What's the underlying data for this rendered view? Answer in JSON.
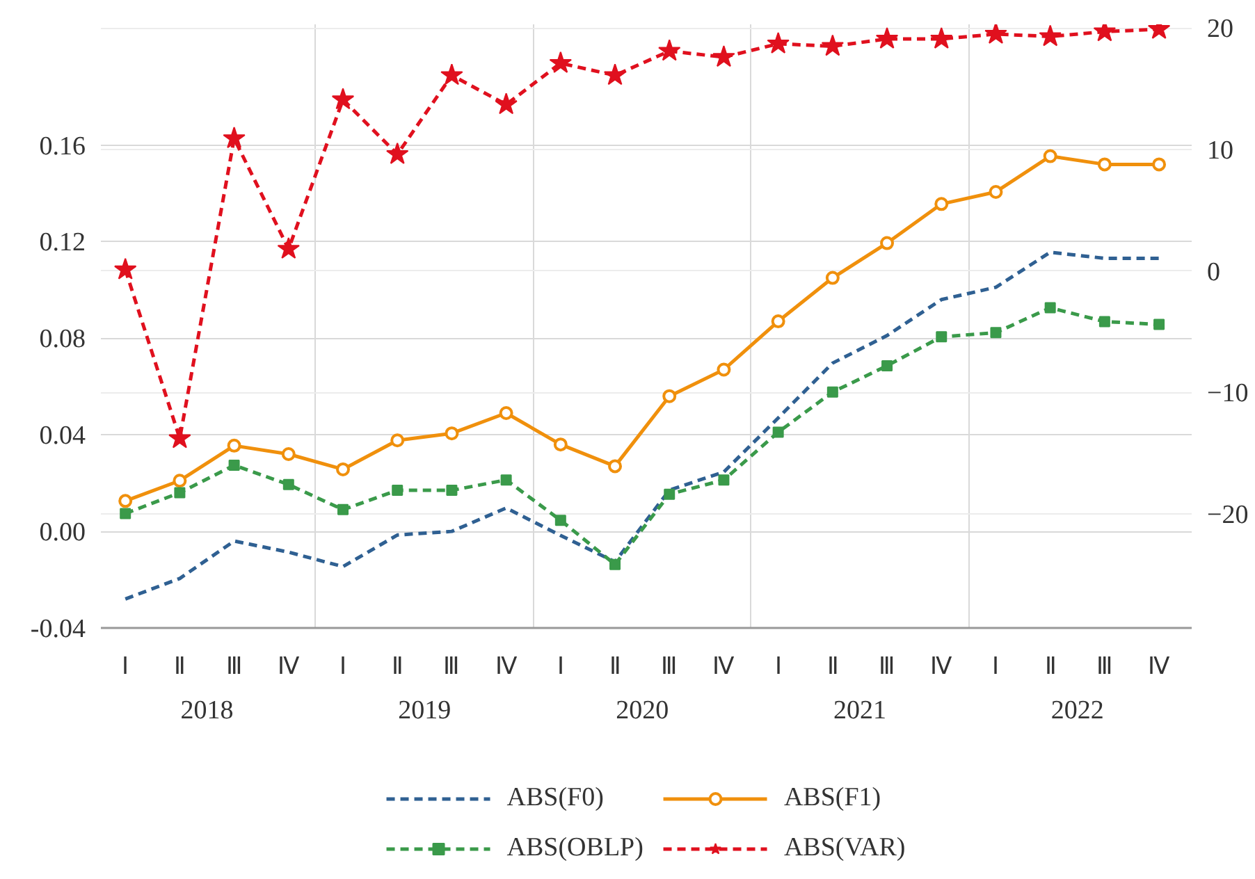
{
  "chart_data": {
    "type": "line",
    "categories": [
      "Ⅰ",
      "Ⅱ",
      "Ⅲ",
      "Ⅳ",
      "Ⅰ",
      "Ⅱ",
      "Ⅲ",
      "Ⅳ",
      "Ⅰ",
      "Ⅱ",
      "Ⅲ",
      "Ⅳ",
      "Ⅰ",
      "Ⅱ",
      "Ⅲ",
      "Ⅳ",
      "Ⅰ",
      "Ⅱ",
      "Ⅲ",
      "Ⅳ"
    ],
    "annotations": [
      "2018",
      "2019",
      "2020",
      "2021",
      "2022"
    ],
    "series": [
      {
        "name": "ABS(F0)",
        "color": "#2f6092",
        "marker": "none",
        "line_style": "dashed",
        "values": [
          -0.028,
          -0.0195,
          -0.004,
          -0.0086,
          -0.0146,
          -0.0015,
          0.0,
          0.0097,
          -0.0017,
          -0.0126,
          0.0171,
          0.0246,
          0.047,
          0.0697,
          0.0811,
          0.096,
          0.1011,
          0.1156,
          0.1131,
          0.1131
        ]
      },
      {
        "name": "ABS(F1)",
        "color": "#f0900c",
        "marker": "circle",
        "line_style": "solid",
        "values": [
          0.0126,
          0.021,
          0.0355,
          0.032,
          0.0257,
          0.0377,
          0.0406,
          0.049,
          0.036,
          0.027,
          0.056,
          0.067,
          0.087,
          0.105,
          0.1194,
          0.1356,
          0.1406,
          0.1554,
          0.152,
          0.152
        ]
      },
      {
        "name": "ABS(OBLP)",
        "color": "#3a9a4a",
        "marker": "square",
        "line_style": "dashed",
        "values": [
          0.0074,
          0.016,
          0.0274,
          0.0194,
          0.009,
          0.017,
          0.017,
          0.0213,
          0.0046,
          -0.0137,
          0.0154,
          0.0213,
          0.0411,
          0.0577,
          0.0686,
          0.0806,
          0.0823,
          0.0926,
          0.0869,
          0.0857
        ]
      },
      {
        "name": "ABS(VAR)",
        "color": "#e0101e",
        "marker": "star",
        "line_style": "dashed",
        "axis": "y2",
        "values": [
          0.1,
          -13.8,
          10.9,
          1.8,
          14.1,
          9.6,
          16.1,
          13.7,
          17.1,
          16.1,
          18.1,
          17.6,
          18.7,
          18.5,
          19.1,
          19.1,
          19.5,
          19.3,
          19.7,
          19.9
        ]
      }
    ],
    "ylim": [
      -0.04,
      0.21
    ],
    "yticks": [
      -0.04,
      {
        "value": 0,
        "label": "0.00"
      },
      0.04,
      0.08,
      0.12,
      0.16
    ],
    "y2lim": [
      -29.4,
      20.3
    ],
    "y2ticks": [
      -20,
      -10,
      0,
      10,
      20
    ],
    "grid": true,
    "legend": "bottom"
  }
}
